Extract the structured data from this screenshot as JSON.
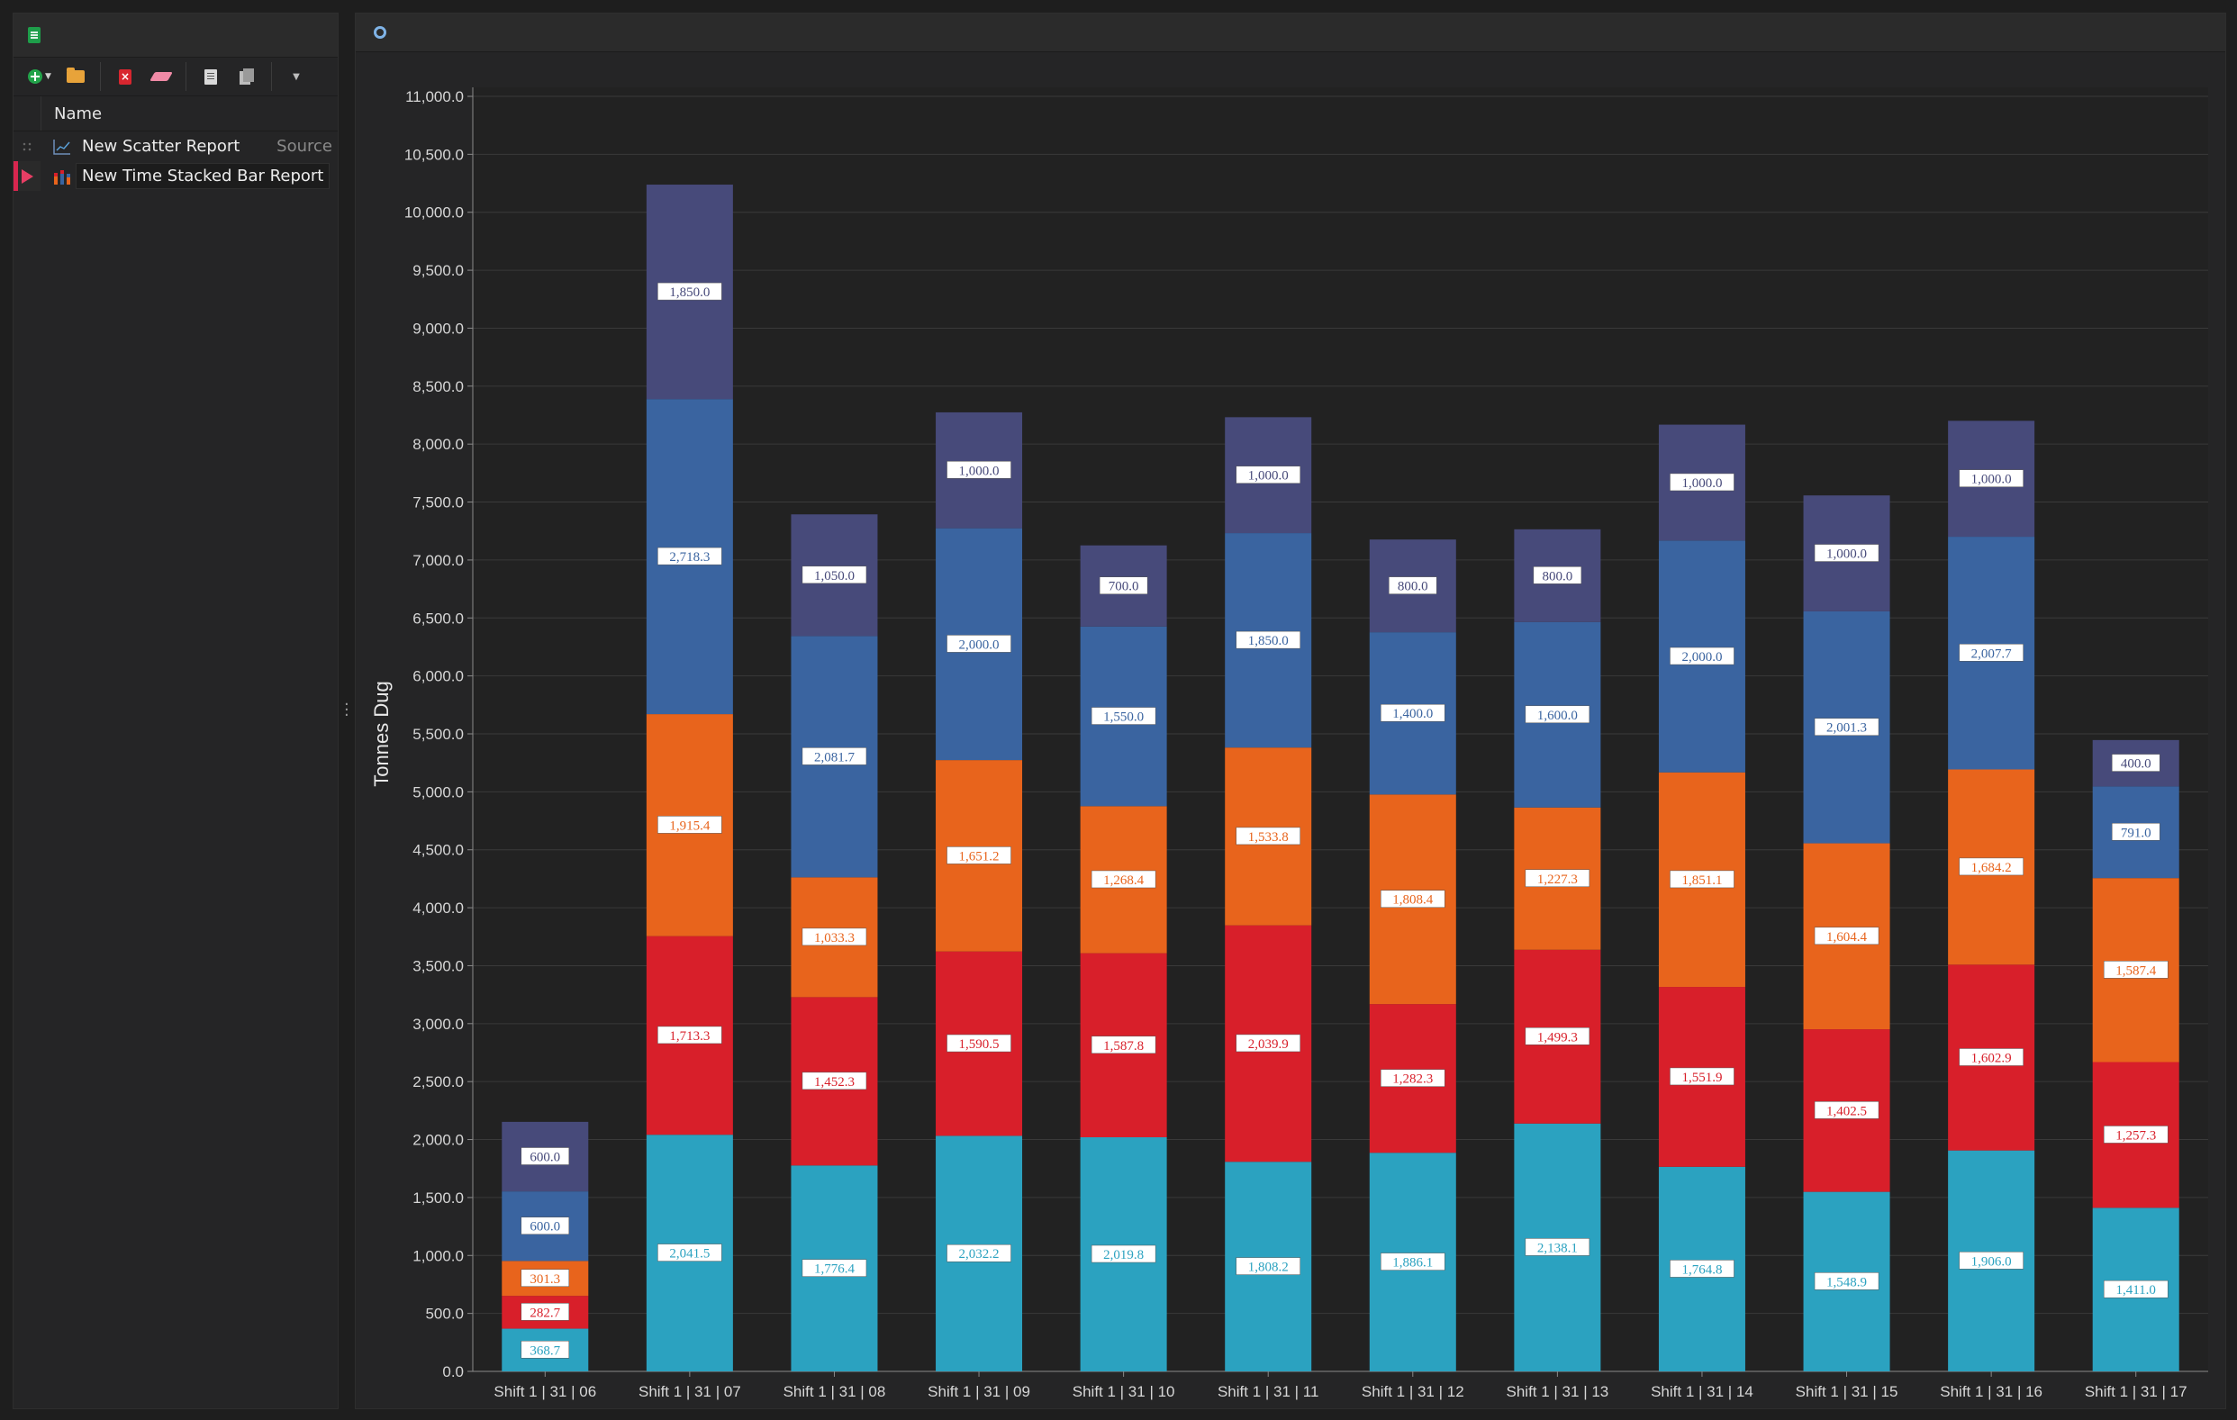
{
  "left_panel": {
    "column_header": "Name",
    "items": [
      {
        "label": "New Scatter Report",
        "source": "Source",
        "icon": "scatter-chart-icon"
      },
      {
        "label": "New Time Stacked Bar Report",
        "icon": "stacked-bar-chart-icon",
        "selected": true
      }
    ],
    "toolbar": [
      "add-icon",
      "open-folder-icon",
      "delete-icon",
      "eraser-icon",
      "copy-icon",
      "paste-icon",
      "chevron-down-icon"
    ]
  },
  "colors": {
    "series": [
      "#2ba2c0",
      "#d81f2a",
      "#e8641c",
      "#3a64a0",
      "#474a7a"
    ],
    "accent": "#d8264f"
  },
  "chart_data": {
    "type": "bar",
    "stacked": true,
    "ylabel": "Tonnes Dug",
    "xlabel": "",
    "ylim": [
      0,
      11000
    ],
    "yticks": [
      "0.0",
      "500.0",
      "1,000.0",
      "1,500.0",
      "2,000.0",
      "2,500.0",
      "3,000.0",
      "3,500.0",
      "4,000.0",
      "4,500.0",
      "5,000.0",
      "5,500.0",
      "6,000.0",
      "6,500.0",
      "7,000.0",
      "7,500.0",
      "8,000.0",
      "8,500.0",
      "9,000.0",
      "9,500.0",
      "10,000.0",
      "10,500.0",
      "11,000.0"
    ],
    "grid": true,
    "categories": [
      "Shift 1 | 31 | 06",
      "Shift 1 | 31 | 07",
      "Shift 1 | 31 | 08",
      "Shift 1 | 31 | 09",
      "Shift 1 | 31 | 10",
      "Shift 1 | 31 | 11",
      "Shift 1 | 31 | 12",
      "Shift 1 | 31 | 13",
      "Shift 1 | 31 | 14",
      "Shift 1 | 31 | 15",
      "Shift 1 | 31 | 16",
      "Shift 1 | 31 | 17"
    ],
    "series": [
      {
        "values": [
          368.7,
          2041.5,
          1776.4,
          2032.2,
          2019.8,
          1808.2,
          1886.1,
          2138.1,
          1764.8,
          1548.9,
          1906.0,
          1411.0
        ],
        "labels": [
          "368.7",
          "2,041.5",
          "1,776.4",
          "2,032.2",
          "2,019.8",
          "1,808.2",
          "1,886.1",
          "2,138.1",
          "1,764.8",
          "1,548.9",
          "1,906.0",
          "1,411.0"
        ]
      },
      {
        "values": [
          282.7,
          1713.3,
          1452.3,
          1590.5,
          1587.8,
          2039.9,
          1282.3,
          1499.3,
          1551.9,
          1402.5,
          1602.9,
          1257.3
        ],
        "labels": [
          "282.7",
          "1,713.3",
          "1,452.3",
          "1,590.5",
          "1,587.8",
          "2,039.9",
          "1,282.3",
          "1,499.3",
          "1,551.9",
          "1,402.5",
          "1,602.9",
          "1,257.3"
        ]
      },
      {
        "values": [
          301.3,
          1915.4,
          1033.3,
          1651.2,
          1268.4,
          1533.8,
          1808.4,
          1227.3,
          1851.1,
          1604.4,
          1684.2,
          1587.4
        ],
        "labels": [
          "301.3",
          "1,915.4",
          "1,033.3",
          "1,651.2",
          "1,268.4",
          "1,533.8",
          "1,808.4",
          "1,227.3",
          "1,851.1",
          "1,604.4",
          "1,684.2",
          "1,587.4"
        ]
      },
      {
        "values": [
          600.0,
          2718.3,
          2081.7,
          2000.0,
          1550.0,
          1850.0,
          1400.0,
          1600.0,
          2000.0,
          2001.3,
          2007.7,
          791.0
        ],
        "labels": [
          "600.0",
          "2,718.3",
          "2,081.7",
          "2,000.0",
          "1,550.0",
          "1,850.0",
          "1,400.0",
          "1,600.0",
          "2,000.0",
          "2,001.3",
          "2,007.7",
          "791.0"
        ]
      },
      {
        "values": [
          600.0,
          1850.0,
          1050.0,
          1000.0,
          700.0,
          1000.0,
          800.0,
          800.0,
          1000.0,
          1000.0,
          1000.0,
          400.0
        ],
        "labels": [
          "600.0",
          "1,850.0",
          "1,050.0",
          "1,000.0",
          "700.0",
          "1,000.0",
          "800.0",
          "800.0",
          "1,000.0",
          "1,000.0",
          "1,000.0",
          "400.0"
        ]
      }
    ]
  }
}
